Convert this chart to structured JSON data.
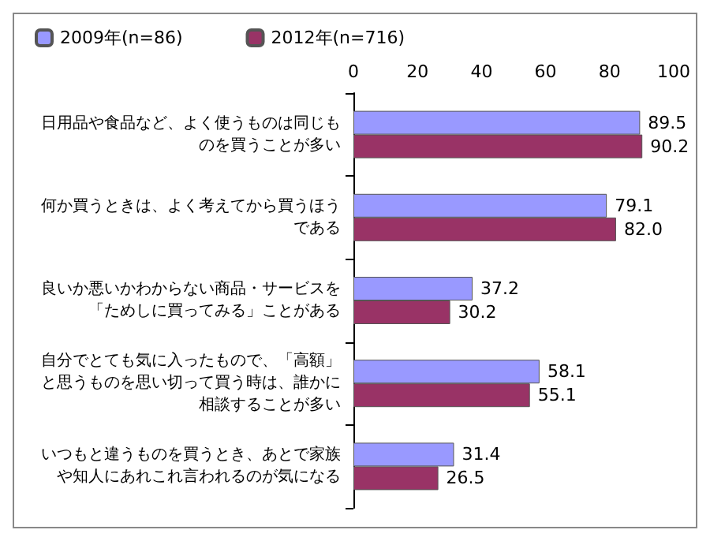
{
  "chart_data": {
    "type": "bar",
    "orientation": "horizontal",
    "categories": [
      "日用品や食品など、よく使うものは同じものを買うことが多い",
      "何か買うときは、よく考えてから買うほうである",
      "良いか悪いかわからない商品・サービスを「ためしに買ってみる」ことがある",
      "自分でとても気に入ったもので、「高額」と思うものを思い切って買う時は、誰かに相談することが多い",
      "いつもと違うものを買うとき、あとで家族や知人にあれこれ言われるのが気になる"
    ],
    "series": [
      {
        "name": "2009年(n=86)",
        "color": "#9999ff",
        "values": [
          89.5,
          79.1,
          37.2,
          58.1,
          31.4
        ],
        "value_labels": [
          "89.5",
          "79.1",
          "37.2",
          "58.1",
          "31.4"
        ]
      },
      {
        "name": "2012年(n=716)",
        "color": "#993366",
        "values": [
          90.2,
          82.0,
          30.2,
          55.1,
          26.5
        ],
        "value_labels": [
          "90.2",
          "82.0",
          "30.2",
          "55.1",
          "26.5"
        ]
      }
    ],
    "xlim": [
      0,
      100
    ],
    "xticks": [
      0,
      20,
      40,
      60,
      80,
      100
    ],
    "legend": "top left",
    "grid": false
  }
}
